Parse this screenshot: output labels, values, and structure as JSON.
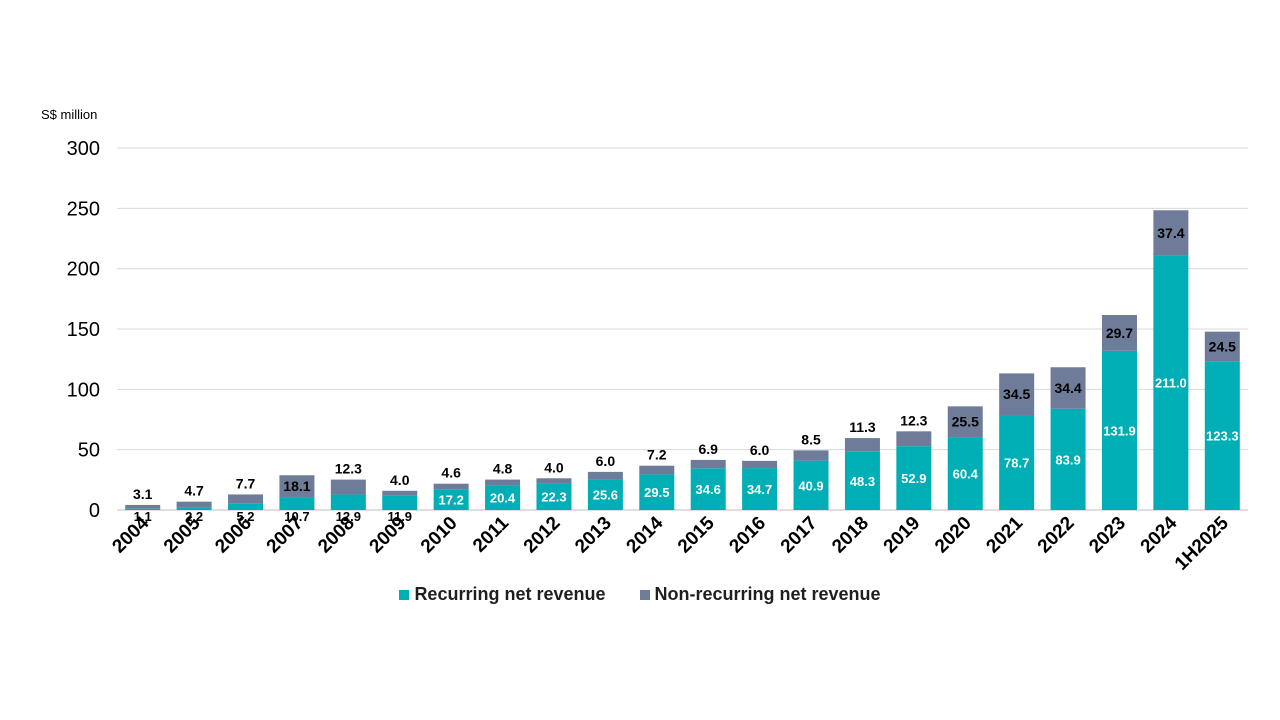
{
  "colors": {
    "recurring": "#00AEB5",
    "non_recurring": "#6E7C99",
    "grid": "#d9d9d9",
    "axis": "#bfbfbf"
  },
  "chart_data": {
    "type": "bar",
    "stacked": true,
    "ylabel": "S$ million",
    "ylim": [
      0,
      300
    ],
    "yticks": [
      0,
      50,
      100,
      150,
      200,
      250,
      300
    ],
    "grid": true,
    "legend_position": "bottom",
    "categories": [
      "2004",
      "2005",
      "2006",
      "2007",
      "2008",
      "2009",
      "2010",
      "2011",
      "2012",
      "2013",
      "2014",
      "2015",
      "2016",
      "2017",
      "2018",
      "2019",
      "2020",
      "2021",
      "2022",
      "2023",
      "2024",
      "1H2025"
    ],
    "series": [
      {
        "name": "Recurring net revenue",
        "values": [
          1.1,
          2.2,
          5.2,
          10.7,
          12.9,
          11.9,
          17.2,
          20.4,
          22.3,
          25.6,
          29.5,
          34.6,
          34.7,
          40.9,
          48.3,
          52.9,
          60.4,
          78.7,
          83.9,
          131.9,
          211.0,
          123.3
        ],
        "labels": [
          "1.1",
          "2.2",
          "5.2",
          "10.7",
          "12.9",
          "11.9",
          "17.2",
          "20.4",
          "22.3",
          "25.6",
          "29.5",
          "34.6",
          "34.7",
          "40.9",
          "48.3",
          "52.9",
          "60.4",
          "78.7",
          "83.9",
          "131.9",
          "211.0",
          "123.3"
        ]
      },
      {
        "name": "Non-recurring net revenue",
        "values": [
          3.1,
          4.7,
          7.7,
          18.1,
          12.3,
          4.0,
          4.6,
          4.8,
          4.0,
          6.0,
          7.2,
          6.9,
          6.0,
          8.5,
          11.3,
          12.3,
          25.5,
          34.5,
          34.4,
          29.7,
          37.4,
          24.5
        ],
        "labels": [
          "3.1",
          "4.7",
          "7.7",
          "18.1",
          "12.3",
          "4.0",
          "4.6",
          "4.8",
          "4.0",
          "6.0",
          "7.2",
          "6.9",
          "6.0",
          "8.5",
          "11.3",
          "12.3",
          "25.5",
          "34.5",
          "34.4",
          "29.7",
          "37.4",
          "24.5"
        ]
      }
    ]
  }
}
